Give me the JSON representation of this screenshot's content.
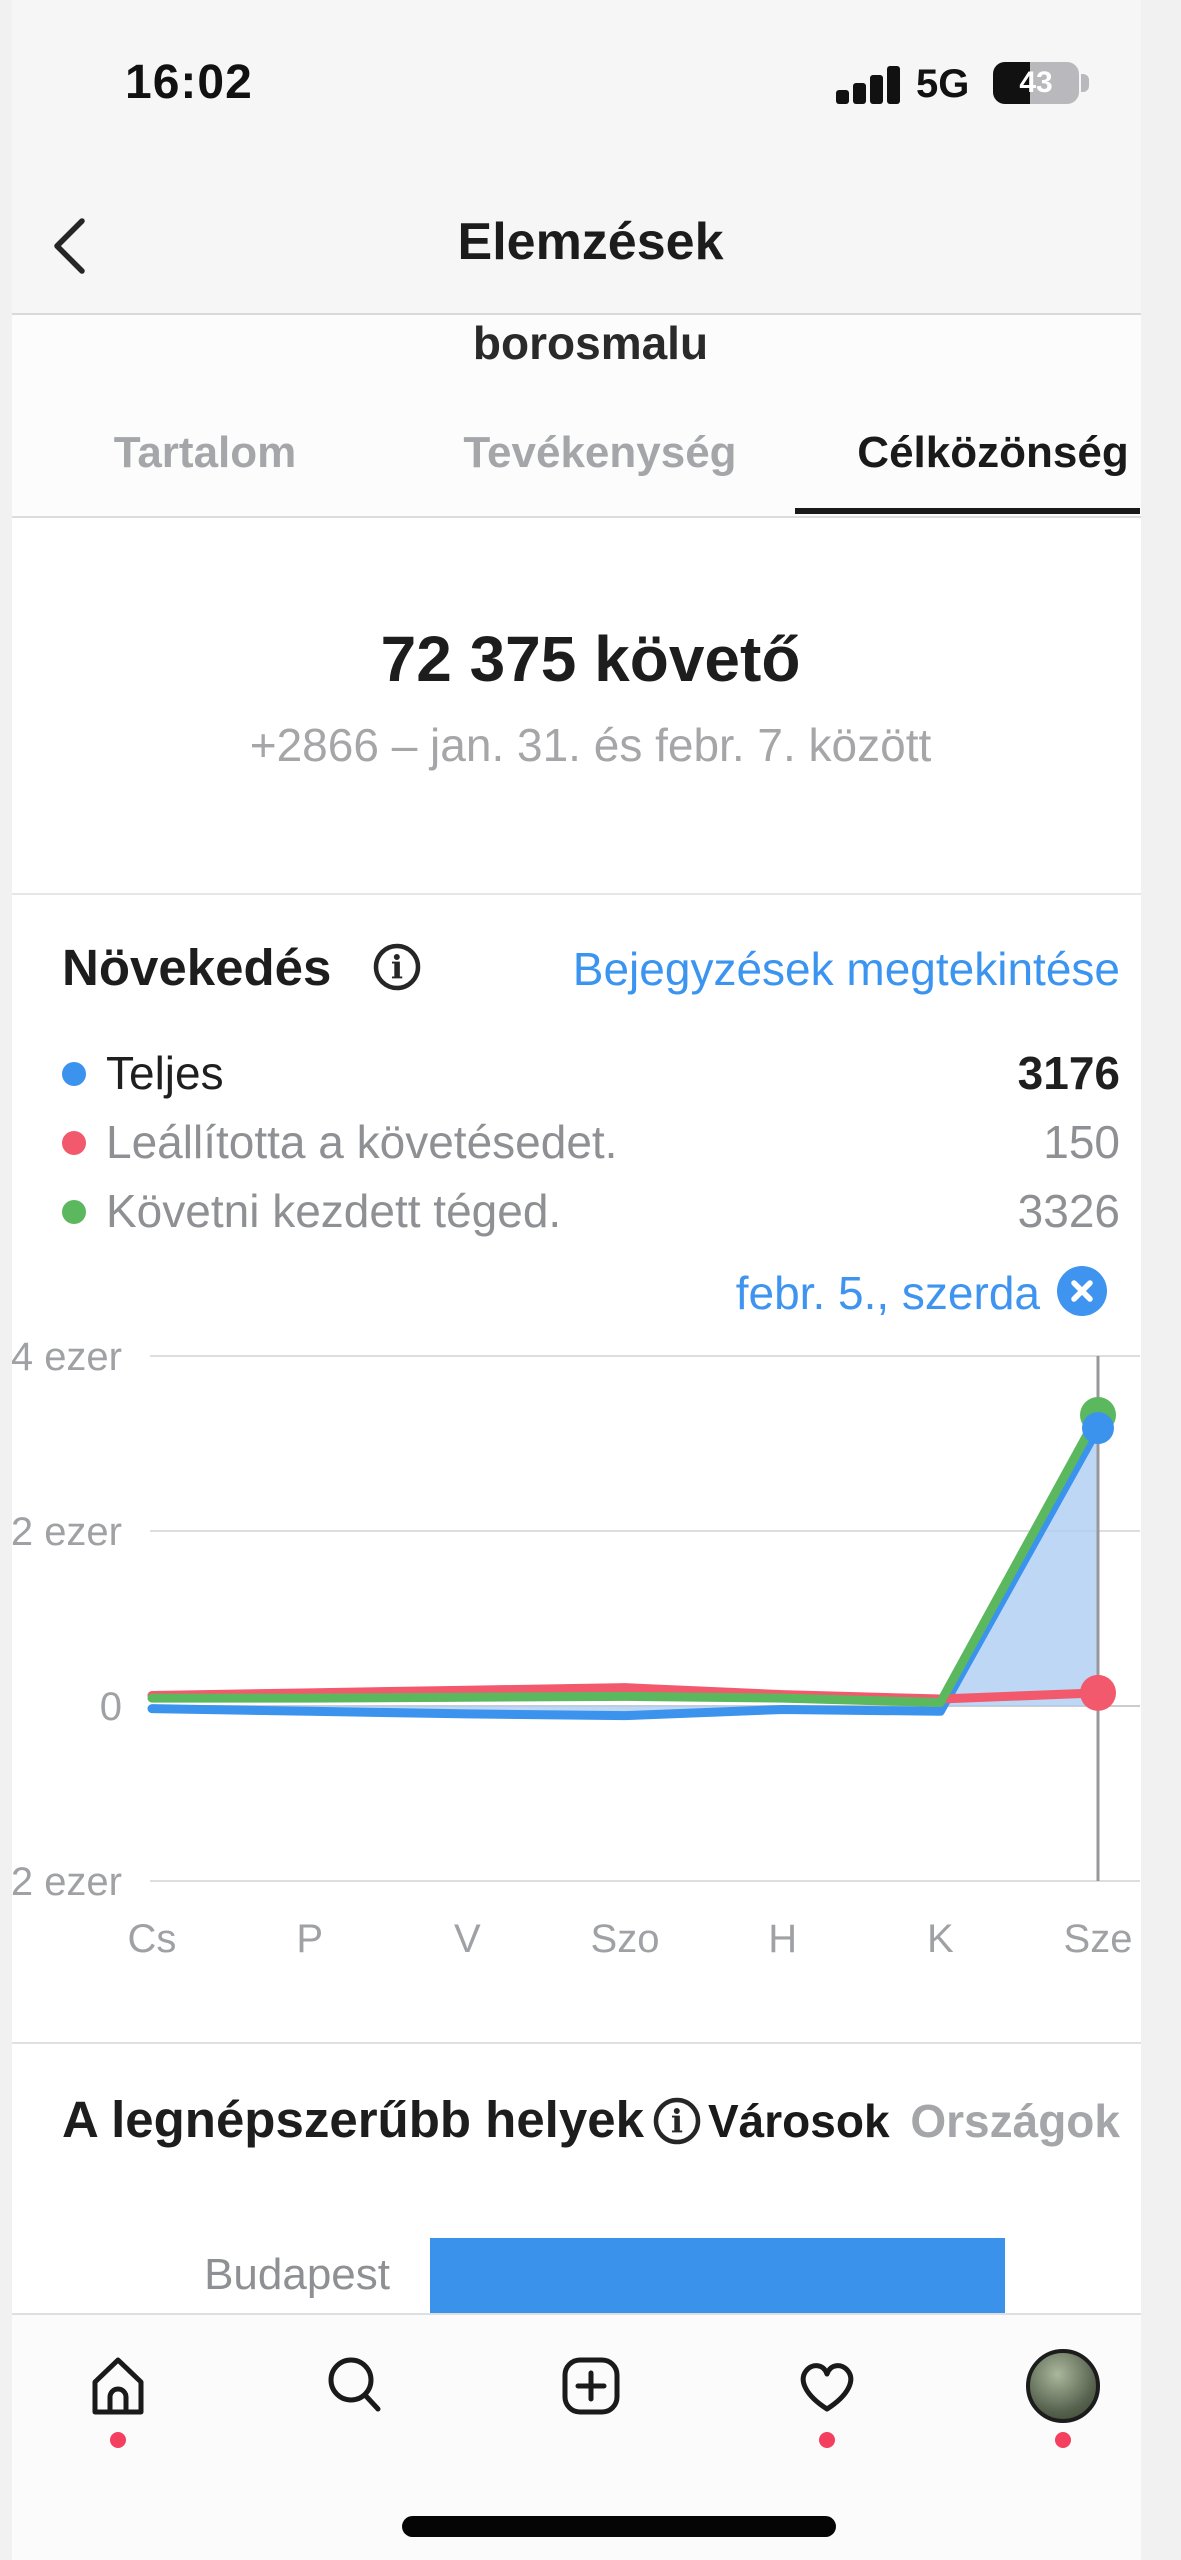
{
  "colors": {
    "accent_blue": "#3a94f0",
    "series_total_blue": "#3b93ee",
    "series_unfollow_red": "#f2596d",
    "series_follow_green": "#5cb85e",
    "area_fill_blue": "#aecdf3",
    "badge_red": "#f3405f",
    "bar_blue": "#3b92ea"
  },
  "status_bar": {
    "time": "16:02",
    "network": "5G",
    "battery_percent": "43"
  },
  "header": {
    "title": "Elemzések",
    "account_name": "borosmalu"
  },
  "tabs": [
    {
      "label": "Tartalom",
      "active": false
    },
    {
      "label": "Tevékenység",
      "active": false
    },
    {
      "label": "Célközönség",
      "active": true
    }
  ],
  "followers": {
    "count": "72 375 követő",
    "change_summary": "+2866 – jan. 31. és febr. 7. között"
  },
  "growth": {
    "title": "Növekedés",
    "link_label": "Bejegyzések megtekintése",
    "legend": [
      {
        "label": "Teljes",
        "value": "3176",
        "color": "#3b93ee"
      },
      {
        "label": "Leállította a követésedet.",
        "value": "150",
        "color": "#f2596d"
      },
      {
        "label": "Követni kezdett téged.",
        "value": "3326",
        "color": "#5cb85e"
      }
    ],
    "selected_day_label": "febr. 5., szerda"
  },
  "chart_data": [
    {
      "type": "line",
      "title": "Növekedés – napi követőváltozás",
      "categories": [
        "Cs",
        "P",
        "V",
        "Szo",
        "H",
        "K",
        "Sze"
      ],
      "series": [
        {
          "name": "Teljes",
          "color": "#3b93ee",
          "fill_to_zero": true,
          "values": [
            -30,
            -60,
            -90,
            -110,
            -40,
            -60,
            3176
          ]
        },
        {
          "name": "Leállította a követésedet.",
          "color": "#f2596d",
          "fill_to_zero": false,
          "values": [
            120,
            150,
            180,
            210,
            130,
            80,
            150
          ]
        },
        {
          "name": "Követni kezdett téged.",
          "color": "#5cb85e",
          "fill_to_zero": false,
          "values": [
            90,
            90,
            100,
            110,
            90,
            40,
            3326
          ]
        }
      ],
      "y_ticks": [
        {
          "value": 4000,
          "label": "4 ezer"
        },
        {
          "value": 2000,
          "label": "2 ezer"
        },
        {
          "value": 0,
          "label": "0"
        },
        {
          "value": -2000,
          "label": "2 ezer"
        }
      ],
      "ylim": [
        -2400,
        4400
      ],
      "selected_index": 6,
      "grid": "horizontal",
      "legend_position": "above"
    },
    {
      "type": "bar",
      "title": "A legnépszerűbb helyek – Városok",
      "orientation": "horizontal",
      "categories": [
        "Budapest"
      ],
      "values_pct_of_track": [
        81
      ],
      "bar_color": "#3b92ea"
    }
  ],
  "places": {
    "title": "A legnépszerűbb helyek",
    "tabs": [
      {
        "label": "Városok",
        "active": true
      },
      {
        "label": "Országok",
        "active": false
      }
    ],
    "rows": [
      {
        "label": "Budapest"
      }
    ]
  }
}
